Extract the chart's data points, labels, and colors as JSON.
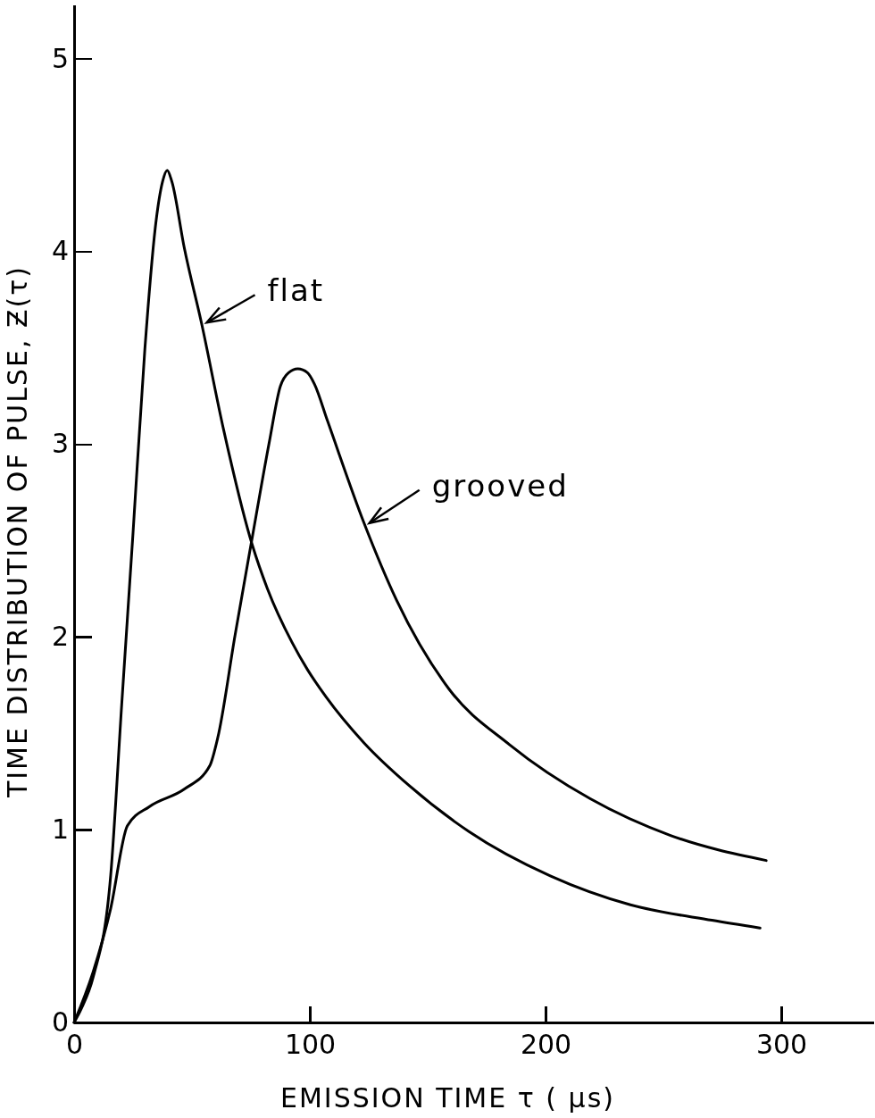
{
  "chart_data": {
    "type": "line",
    "xlabel": "EMISSION TIME  τ ( μs)",
    "ylabel": "TIME DISTRIBUTION OF PULSE, Ƶ(τ)",
    "xlim": [
      0,
      339
    ],
    "ylim": [
      0,
      5.28
    ],
    "xticks": [
      0,
      100,
      200,
      300
    ],
    "yticks": [
      0,
      1,
      2,
      3,
      4,
      5
    ],
    "grid": false,
    "legend": "top",
    "line_style": "solid",
    "marker": "none",
    "series": [
      {
        "name": "flat",
        "color": "#000000",
        "x": [
          0,
          3,
          8.2,
          15.5,
          20.2,
          25,
          30,
          34.8,
          37.5,
          39.5,
          41.5,
          46.7,
          54,
          63.5,
          75.5,
          82,
          92.5,
          99,
          106.8,
          123,
          142,
          167.5,
          202,
          236,
          270.6,
          291
        ],
        "values": [
          0,
          0.07,
          0.24,
          0.76,
          1.65,
          2.54,
          3.49,
          4.16,
          4.36,
          4.42,
          4.36,
          4.02,
          3.63,
          3.07,
          2.48,
          2.25,
          1.97,
          1.83,
          1.69,
          1.45,
          1.23,
          0.99,
          0.76,
          0.61,
          0.53,
          0.49
        ]
      },
      {
        "name": "grooved",
        "color": "#000000",
        "x": [
          0,
          8,
          15.5,
          22.6,
          32,
          46.7,
          57.5,
          61,
          68.3,
          75.5,
          82.8,
          87.5,
          91,
          94.9,
          99,
          102,
          107.5,
          123,
          136.8,
          159,
          184.8,
          219,
          253,
          293.6
        ],
        "values": [
          0,
          0.26,
          0.59,
          1.02,
          1.12,
          1.21,
          1.33,
          1.48,
          2.01,
          2.51,
          3.01,
          3.3,
          3.37,
          3.39,
          3.37,
          3.31,
          3.12,
          2.59,
          2.19,
          1.73,
          1.44,
          1.16,
          0.97,
          0.84
        ]
      }
    ]
  }
}
